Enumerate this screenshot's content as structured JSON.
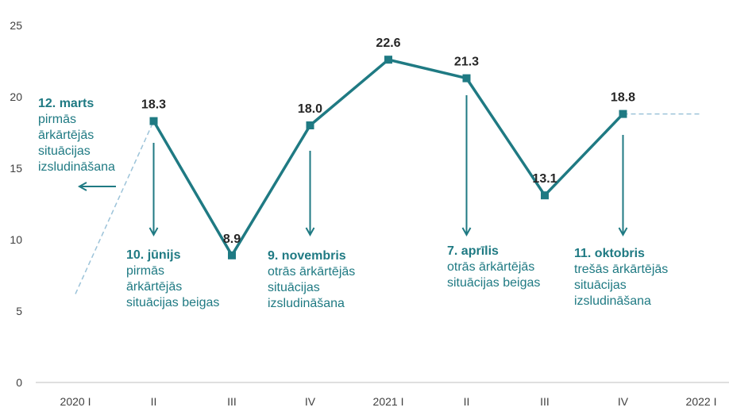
{
  "colors": {
    "line": "#1f7a83",
    "accent_text": "#1f7a83",
    "dashed": "#9cc3d9",
    "axis": "#bfbfbf",
    "tick_text": "#404040",
    "label_text": "#262626"
  },
  "chart_data": {
    "type": "line",
    "x_tick_labels": [
      "2020 I",
      "II",
      "III",
      "IV",
      "2021 I",
      "II",
      "III",
      "IV",
      "2022 I"
    ],
    "y_tick_labels": [
      "0",
      "5",
      "10",
      "15",
      "20",
      "25"
    ],
    "ylim": [
      0,
      25
    ],
    "grid": false,
    "series": [
      {
        "x": [
          "2020 II",
          "2020 III",
          "2020 IV",
          "2021 I",
          "2021 II",
          "2021 III",
          "2021 IV"
        ],
        "values": [
          18.3,
          8.9,
          18.0,
          22.6,
          21.3,
          13.1,
          18.8
        ],
        "labels": [
          "18.3",
          "8.9",
          "18.0",
          "22.6",
          "21.3",
          "13.1",
          "18.8"
        ]
      }
    ],
    "dashed_lines": [
      {
        "from": [
          "2020 I",
          6.2
        ],
        "to": [
          "2020 II",
          18.3
        ]
      },
      {
        "from": [
          "2021 IV",
          18.8
        ],
        "to": [
          "2022 I",
          18.8
        ]
      }
    ],
    "annotations": [
      {
        "title": "12. marts",
        "lines": [
          "pirmās",
          "ārkārtējās",
          "situācijas",
          "izsludināšana"
        ],
        "arrow": "left"
      },
      {
        "title": "10. jūnijs",
        "lines": [
          "pirmās",
          "ārkārtējās",
          "situācijas beigas"
        ],
        "arrow": "down",
        "at": "2020 II"
      },
      {
        "title": "9. novembris",
        "lines": [
          "otrās ārkārtējās",
          "situācijas",
          "izsludināšana"
        ],
        "arrow": "down",
        "at": "2020 IV"
      },
      {
        "title": "7. aprīlis",
        "lines": [
          "otrās ārkārtējās",
          "situācijas beigas"
        ],
        "arrow": "down",
        "at": "2021 II"
      },
      {
        "title": "11. oktobris",
        "lines": [
          "trešās ārkārtējās",
          "situācijas",
          "izsludināšana"
        ],
        "arrow": "down",
        "at": "2021 IV"
      }
    ]
  }
}
